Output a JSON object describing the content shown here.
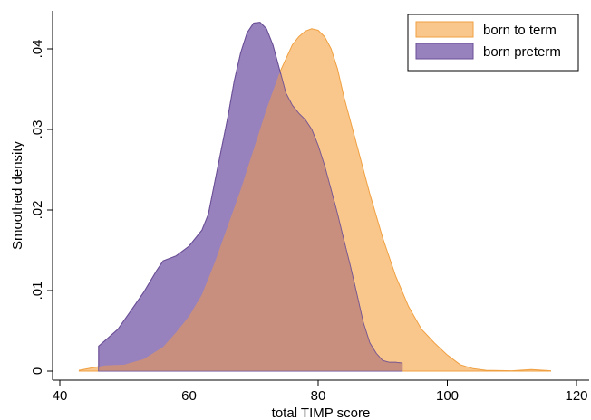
{
  "chart_data": {
    "type": "area",
    "title": "",
    "xlabel": "total TIMP score",
    "ylabel": "Smoothed density",
    "xlim": [
      40,
      120
    ],
    "ylim": [
      0,
      0.045
    ],
    "x_ticks": [
      40,
      60,
      80,
      100,
      120
    ],
    "x_tick_labels": [
      "40",
      "60",
      "80",
      "100",
      "120"
    ],
    "y_ticks": [
      0,
      0.01,
      0.02,
      0.03,
      0.04
    ],
    "y_tick_labels": [
      "0",
      ".01",
      ".02",
      ".03",
      ".04"
    ],
    "grid": false,
    "legend_position": "top-right",
    "series": [
      {
        "name": "born to term",
        "color": "#f9c68c",
        "edge": "#f0a040",
        "points": [
          [
            43,
            0.0001
          ],
          [
            45,
            0.0004
          ],
          [
            47,
            0.0007
          ],
          [
            50,
            0.0008
          ],
          [
            53,
            0.0015
          ],
          [
            56,
            0.003
          ],
          [
            58,
            0.0048
          ],
          [
            60,
            0.0068
          ],
          [
            62,
            0.0095
          ],
          [
            64,
            0.0135
          ],
          [
            66,
            0.018
          ],
          [
            68,
            0.0225
          ],
          [
            70,
            0.0275
          ],
          [
            72,
            0.0325
          ],
          [
            74,
            0.037
          ],
          [
            76,
            0.0405
          ],
          [
            77,
            0.0415
          ],
          [
            78,
            0.0422
          ],
          [
            79,
            0.0425
          ],
          [
            80,
            0.0423
          ],
          [
            81,
            0.0415
          ],
          [
            82,
            0.04
          ],
          [
            83,
            0.0375
          ],
          [
            84,
            0.034
          ],
          [
            86,
            0.028
          ],
          [
            88,
            0.022
          ],
          [
            90,
            0.0165
          ],
          [
            92,
            0.0118
          ],
          [
            94,
            0.008
          ],
          [
            96,
            0.0052
          ],
          [
            98,
            0.0035
          ],
          [
            100,
            0.002
          ],
          [
            102,
            0.0008
          ],
          [
            104,
            0.0003
          ],
          [
            106,
            0.0001
          ],
          [
            110,
            5e-05
          ],
          [
            113,
            0.0002
          ],
          [
            116,
            5e-05
          ]
        ]
      },
      {
        "name": "born preterm",
        "color": "#9782bd",
        "edge": "#6a4f96",
        "points": [
          [
            46,
            0.0031
          ],
          [
            47,
            0.0038
          ],
          [
            49,
            0.0052
          ],
          [
            51,
            0.0075
          ],
          [
            53,
            0.0098
          ],
          [
            55,
            0.0125
          ],
          [
            56,
            0.0137
          ],
          [
            58,
            0.0143
          ],
          [
            60,
            0.0155
          ],
          [
            62,
            0.0175
          ],
          [
            63,
            0.0195
          ],
          [
            64,
            0.0235
          ],
          [
            65,
            0.0275
          ],
          [
            66,
            0.0315
          ],
          [
            67,
            0.036
          ],
          [
            68,
            0.0395
          ],
          [
            69,
            0.042
          ],
          [
            70,
            0.0432
          ],
          [
            71,
            0.0433
          ],
          [
            72,
            0.0425
          ],
          [
            73,
            0.0405
          ],
          [
            74,
            0.0375
          ],
          [
            75,
            0.0345
          ],
          [
            76,
            0.033
          ],
          [
            77,
            0.032
          ],
          [
            78,
            0.0312
          ],
          [
            79,
            0.03
          ],
          [
            80,
            0.028
          ],
          [
            81,
            0.0255
          ],
          [
            82,
            0.0225
          ],
          [
            83,
            0.0195
          ],
          [
            84,
            0.0162
          ],
          [
            85,
            0.013
          ],
          [
            86,
            0.0095
          ],
          [
            87,
            0.006
          ],
          [
            88,
            0.0035
          ],
          [
            89,
            0.0022
          ],
          [
            90,
            0.0013
          ],
          [
            91,
            0.0011
          ],
          [
            92,
            0.0011
          ],
          [
            93,
            0.001
          ]
        ]
      }
    ]
  }
}
